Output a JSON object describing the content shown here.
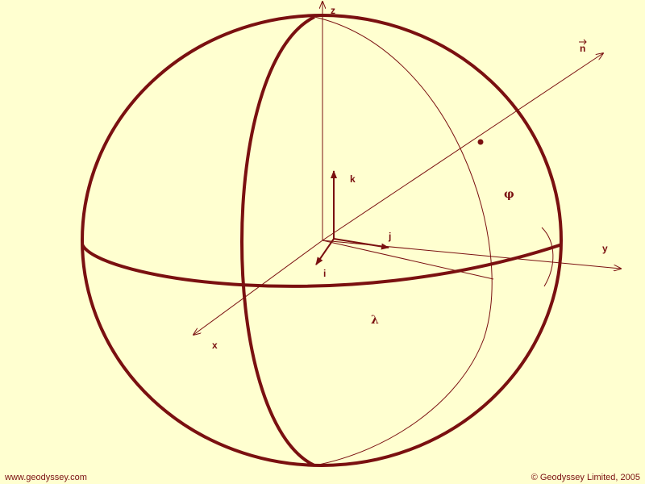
{
  "labels": {
    "axis_z": "z",
    "axis_y": "y",
    "axis_x": "x",
    "unit_i": "i",
    "unit_j": "j",
    "unit_k": "k",
    "normal": "n",
    "latitude": "φ",
    "longitude": "λ"
  },
  "footer": {
    "website": "www.geodyssey.com",
    "copyright": "© Geodyssey Limited, 2005"
  },
  "colors": {
    "background": "#ffffd0",
    "ink": "#7a1010"
  }
}
